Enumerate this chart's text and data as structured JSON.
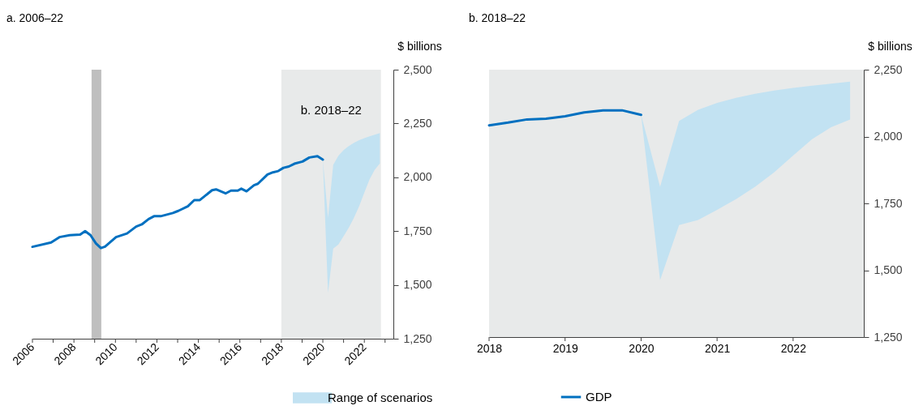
{
  "chart_data": [
    {
      "type": "line",
      "title": "a. 2006–22",
      "ylabel": "$ billions",
      "xlim": [
        2006,
        2023.4
      ],
      "xticks": [
        2006,
        {
          "value": 2007,
          "label": null
        },
        2008,
        {
          "value": 2009,
          "label": null
        },
        2010,
        {
          "value": 2011,
          "label": null
        },
        2012,
        {
          "value": 2013,
          "label": null
        },
        2014,
        {
          "value": 2015,
          "label": null
        },
        2016,
        {
          "value": 2017,
          "label": null
        },
        2018,
        {
          "value": 2019,
          "label": null
        },
        2020,
        {
          "value": 2021,
          "label": null
        },
        2022,
        {
          "value": 2023,
          "label": null
        }
      ],
      "ylim": [
        1250,
        2500
      ],
      "yticks": [
        {
          "value": 1250,
          "label": "1,250"
        },
        {
          "value": 1500,
          "label": "1,500"
        },
        {
          "value": 1750,
          "label": "1,750"
        },
        {
          "value": 2000,
          "label": "2,000"
        },
        {
          "value": 2250,
          "label": "2,250"
        },
        {
          "value": 2500,
          "label": "2,500"
        }
      ],
      "grid": false,
      "legend": "bottom",
      "bands": [
        {
          "axis": "x",
          "from": 2018,
          "to": 2022.8,
          "label": "b. 2018–22",
          "color": "#e8eaea"
        },
        {
          "axis": "x",
          "from": 2008.85,
          "to": 2009.32,
          "color": "#bfbfbf"
        }
      ],
      "series": [
        {
          "name": "Range of scenarios",
          "type": "area",
          "color": "#c2e2f2",
          "x": [
            2020,
            2020.25,
            2020.5,
            2020.75,
            2021,
            2021.25,
            2021.5,
            2021.75,
            2022,
            2022.25,
            2022.5,
            2022.75
          ],
          "values": [
            null,
            null,
            null,
            null,
            null,
            null,
            null,
            null,
            null,
            null,
            null,
            null
          ],
          "lower": [
            2081,
            1463,
            1669,
            1688,
            1726,
            1766,
            1812,
            1866,
            1929,
            1990,
            2035,
            2064
          ],
          "upper": [
            2081,
            1812,
            2058,
            2100,
            2126,
            2145,
            2160,
            2172,
            2182,
            2190,
            2198,
            2205
          ]
        },
        {
          "name": "GDP",
          "type": "line",
          "color": "#0070c0",
          "x": [
            2006,
            2006.9,
            2007.3,
            2007.8,
            2008.3,
            2008.54,
            2008.8,
            2009.06,
            2009.3,
            2009.5,
            2010.03,
            2010.56,
            2011,
            2011.27,
            2011.6,
            2011.86,
            2012.18,
            2012.77,
            2013.03,
            2013.49,
            2013.8,
            2014.07,
            2014.66,
            2014.85,
            2015.31,
            2015.57,
            2015.9,
            2016.07,
            2016.32,
            2016.68,
            2016.87,
            2017.33,
            2017.59,
            2017.85,
            2018.1,
            2018.36,
            2018.63,
            2019.02,
            2019.35,
            2019.74,
            2020
          ],
          "values": [
            1677,
            1697,
            1722,
            1731,
            1734,
            1750,
            1731,
            1693,
            1671,
            1678,
            1722,
            1739,
            1771,
            1781,
            1806,
            1819,
            1819,
            1834,
            1844,
            1865,
            1894,
            1894,
            1940,
            1944,
            1925,
            1938,
            1938,
            1947,
            1935,
            1963,
            1970,
            2013,
            2023,
            2029,
            2044,
            2050,
            2063,
            2073,
            2092,
            2098,
            2082
          ]
        }
      ]
    },
    {
      "type": "line",
      "title": "b. 2018–22",
      "ylabel": "$ billions",
      "xlim": [
        2018,
        2022.93
      ],
      "xticks": [
        2018,
        2019,
        2020,
        2021,
        2022
      ],
      "ylim": [
        1250,
        2250
      ],
      "yticks": [
        {
          "value": 1250,
          "label": "1,250"
        },
        {
          "value": 1500,
          "label": "1,500"
        },
        {
          "value": 1750,
          "label": "1,750"
        },
        {
          "value": 2000,
          "label": "2,000"
        },
        {
          "value": 2250,
          "label": "2,250"
        }
      ],
      "grid": false,
      "bands": [
        {
          "axis": "x",
          "from": 2018,
          "to": 2022.93,
          "color": "#e8eaea"
        }
      ],
      "series": [
        {
          "type": "area",
          "color": "#c2e2f2",
          "x": [
            2020,
            2020.25,
            2020.5,
            2020.75,
            2021,
            2021.25,
            2021.5,
            2021.75,
            2022,
            2022.25,
            2022.5,
            2022.75
          ],
          "values": [
            null,
            null,
            null,
            null,
            null,
            null,
            null,
            null,
            null,
            null,
            null,
            null
          ],
          "lower": [
            2081,
            1463,
            1669,
            1688,
            1726,
            1766,
            1812,
            1866,
            1929,
            1990,
            2035,
            2064
          ],
          "upper": [
            2081,
            1812,
            2058,
            2100,
            2126,
            2145,
            2160,
            2172,
            2182,
            2190,
            2198,
            2205
          ]
        },
        {
          "type": "line",
          "color": "#0070c0",
          "x": [
            2018,
            2018.25,
            2018.5,
            2018.75,
            2019,
            2019.25,
            2019.5,
            2019.75,
            2020
          ],
          "values": [
            2042,
            2052,
            2064,
            2067,
            2076,
            2090,
            2098,
            2098,
            2081
          ]
        }
      ]
    }
  ]
}
